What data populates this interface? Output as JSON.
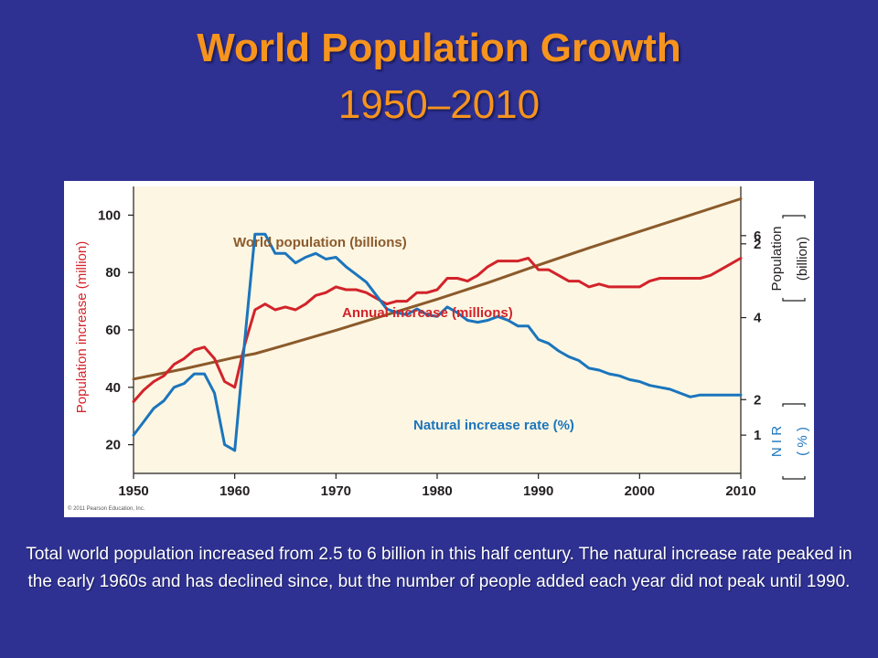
{
  "slide": {
    "title": "World Population Growth",
    "subtitle": "1950–2010",
    "caption": "Total world population increased from 2.5 to 6 billion in this half century. The natural increase rate peaked in the early 1960s and has declined since, but the number of people added each year did not peak until 1990."
  },
  "colors": {
    "background": "#2e3192",
    "title": "#f7941d",
    "plot_area": "#fdf6e3",
    "population_line": "#8b5a2b",
    "increase_line": "#d2232a",
    "nir_line": "#1b75bc",
    "left_axis_title": "#d2232a",
    "nir_axis": "#1b75bc"
  },
  "chart_data": {
    "type": "line",
    "copyright": "© 2011 Pearson Education, Inc.",
    "x_ticks": [
      "1950",
      "1960",
      "1970",
      "1980",
      "1990",
      "2000",
      "2010"
    ],
    "xlim": [
      1950,
      2010
    ],
    "left_axis": {
      "label": "Population increase (million)",
      "ticks": [
        "20",
        "40",
        "60",
        "80",
        "100"
      ],
      "lim": [
        10,
        110
      ]
    },
    "right_axis_population": {
      "label_line1": "Population",
      "label_line2": "(billion)",
      "ticks": [
        "2",
        "4",
        "6"
      ],
      "lim": [
        0.2,
        7.2
      ]
    },
    "right_axis_nir": {
      "label_line1": "N I R",
      "label_line2": "( % )",
      "ticks": [
        "1",
        "2"
      ],
      "lim": [
        0.8,
        2.3
      ]
    },
    "series": [
      {
        "name": "World population (billions)",
        "axis": "population",
        "points": [
          [
            1950,
            2.5
          ],
          [
            1955,
            2.75
          ],
          [
            1960,
            3.03
          ],
          [
            1962,
            3.12
          ],
          [
            1965,
            3.33
          ],
          [
            1970,
            3.69
          ],
          [
            1975,
            4.07
          ],
          [
            1980,
            4.45
          ],
          [
            1985,
            4.85
          ],
          [
            1990,
            5.28
          ],
          [
            1995,
            5.7
          ],
          [
            2000,
            6.1
          ],
          [
            2005,
            6.5
          ],
          [
            2010,
            6.9
          ]
        ]
      },
      {
        "name": "Annual increase (millions)",
        "axis": "left",
        "points": [
          [
            1950,
            35
          ],
          [
            1951,
            39
          ],
          [
            1952,
            42
          ],
          [
            1953,
            44
          ],
          [
            1954,
            48
          ],
          [
            1955,
            50
          ],
          [
            1956,
            53
          ],
          [
            1957,
            54
          ],
          [
            1958,
            50
          ],
          [
            1959,
            42
          ],
          [
            1960,
            40
          ],
          [
            1961,
            55
          ],
          [
            1962,
            67
          ],
          [
            1963,
            69
          ],
          [
            1964,
            67
          ],
          [
            1965,
            68
          ],
          [
            1966,
            67
          ],
          [
            1967,
            69
          ],
          [
            1968,
            72
          ],
          [
            1969,
            73
          ],
          [
            1970,
            75
          ],
          [
            1971,
            74
          ],
          [
            1972,
            74
          ],
          [
            1973,
            73
          ],
          [
            1974,
            71
          ],
          [
            1975,
            69
          ],
          [
            1976,
            70
          ],
          [
            1977,
            70
          ],
          [
            1978,
            73
          ],
          [
            1979,
            73
          ],
          [
            1980,
            74
          ],
          [
            1981,
            78
          ],
          [
            1982,
            78
          ],
          [
            1983,
            77
          ],
          [
            1984,
            79
          ],
          [
            1985,
            82
          ],
          [
            1986,
            84
          ],
          [
            1987,
            84
          ],
          [
            1988,
            84
          ],
          [
            1989,
            85
          ],
          [
            1990,
            81
          ],
          [
            1991,
            81
          ],
          [
            1992,
            79
          ],
          [
            1993,
            77
          ],
          [
            1994,
            77
          ],
          [
            1995,
            75
          ],
          [
            1996,
            76
          ],
          [
            1997,
            75
          ],
          [
            1998,
            75
          ],
          [
            1999,
            75
          ],
          [
            2000,
            75
          ],
          [
            2001,
            77
          ],
          [
            2002,
            78
          ],
          [
            2003,
            78
          ],
          [
            2004,
            78
          ],
          [
            2005,
            78
          ],
          [
            2006,
            78
          ],
          [
            2007,
            79
          ],
          [
            2008,
            81
          ],
          [
            2009,
            83
          ],
          [
            2010,
            85
          ]
        ]
      },
      {
        "name": "Natural increase rate (%)",
        "axis": "nir",
        "points": [
          [
            1950,
            1.0
          ],
          [
            1951,
            1.07
          ],
          [
            1952,
            1.14
          ],
          [
            1953,
            1.18
          ],
          [
            1954,
            1.25
          ],
          [
            1955,
            1.27
          ],
          [
            1956,
            1.32
          ],
          [
            1957,
            1.32
          ],
          [
            1958,
            1.22
          ],
          [
            1959,
            0.95
          ],
          [
            1960,
            0.92
          ],
          [
            1961,
            1.5
          ],
          [
            1962,
            2.05
          ],
          [
            1963,
            2.05
          ],
          [
            1964,
            1.95
          ],
          [
            1965,
            1.95
          ],
          [
            1966,
            1.9
          ],
          [
            1967,
            1.93
          ],
          [
            1968,
            1.95
          ],
          [
            1969,
            1.92
          ],
          [
            1970,
            1.93
          ],
          [
            1971,
            1.88
          ],
          [
            1972,
            1.84
          ],
          [
            1973,
            1.8
          ],
          [
            1974,
            1.73
          ],
          [
            1975,
            1.66
          ],
          [
            1976,
            1.64
          ],
          [
            1977,
            1.63
          ],
          [
            1978,
            1.66
          ],
          [
            1979,
            1.63
          ],
          [
            1980,
            1.62
          ],
          [
            1981,
            1.67
          ],
          [
            1982,
            1.64
          ],
          [
            1983,
            1.6
          ],
          [
            1984,
            1.59
          ],
          [
            1985,
            1.6
          ],
          [
            1986,
            1.62
          ],
          [
            1987,
            1.6
          ],
          [
            1988,
            1.57
          ],
          [
            1989,
            1.57
          ],
          [
            1990,
            1.5
          ],
          [
            1991,
            1.48
          ],
          [
            1992,
            1.44
          ],
          [
            1993,
            1.41
          ],
          [
            1994,
            1.39
          ],
          [
            1995,
            1.35
          ],
          [
            1996,
            1.34
          ],
          [
            1997,
            1.32
          ],
          [
            1998,
            1.31
          ],
          [
            1999,
            1.29
          ],
          [
            2000,
            1.28
          ],
          [
            2001,
            1.26
          ],
          [
            2002,
            1.25
          ],
          [
            2003,
            1.24
          ],
          [
            2004,
            1.22
          ],
          [
            2005,
            1.2
          ],
          [
            2006,
            1.21
          ],
          [
            2007,
            1.21
          ],
          [
            2008,
            1.21
          ],
          [
            2009,
            1.21
          ],
          [
            2010,
            1.21
          ]
        ]
      }
    ],
    "grid": false,
    "legend": "inline labels"
  }
}
